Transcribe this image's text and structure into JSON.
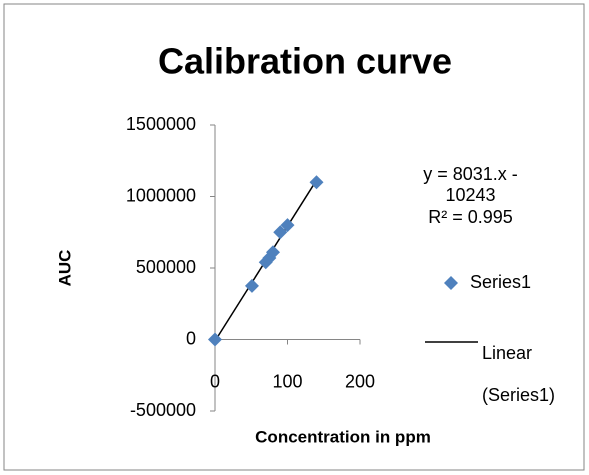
{
  "chart_data": {
    "type": "scatter",
    "title": "Calibration curve",
    "x_label": "Concentration in ppm",
    "y_label": "AUC",
    "series": [
      {
        "name": "Series1",
        "color": "#4f81bd",
        "x": [
          0,
          51,
          70,
          75,
          80,
          90,
          100,
          140
        ],
        "values": [
          0,
          375000,
          540000,
          570000,
          610000,
          750000,
          800000,
          1100000
        ]
      }
    ],
    "trendline": {
      "name": "Linear (Series1)",
      "slope": 8031,
      "intercept": -10243,
      "equation": "y = 8031.x - 10243",
      "r_squared": "R² = 0.995",
      "color": "#000000"
    },
    "xlim": [
      0,
      200
    ],
    "xticks": [
      0,
      100,
      200
    ],
    "ylim": [
      -500000,
      1500000
    ],
    "yticks": [
      -500000,
      0,
      500000,
      1000000,
      1500000
    ],
    "legend": "right"
  }
}
